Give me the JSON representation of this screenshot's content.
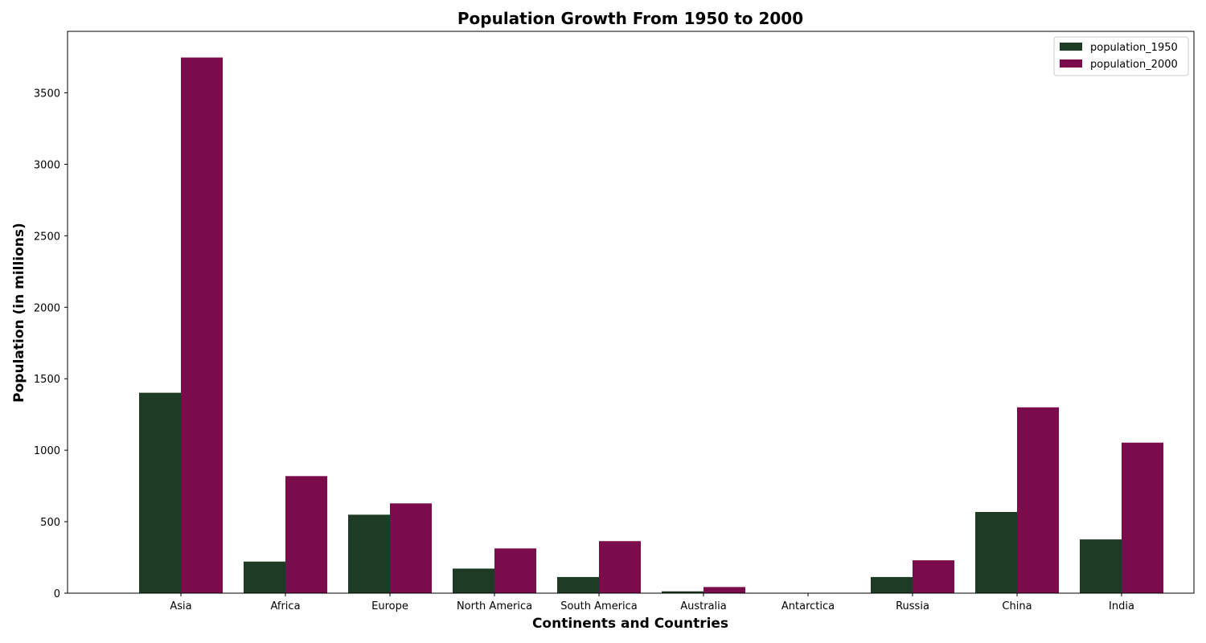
{
  "chart_data": {
    "type": "bar",
    "title": "Population Growth From 1950 to 2000",
    "xlabel": "Continents and Countries",
    "ylabel": "Population (in millions)",
    "categories": [
      "Asia",
      "Africa",
      "Europe",
      "North America",
      "South America",
      "Australia",
      "Antarctica",
      "Russia",
      "China",
      "India"
    ],
    "series": [
      {
        "name": "population_1950",
        "color": "#1e3b25",
        "values": [
          1402,
          221,
          549,
          172,
          113,
          13,
          0,
          113,
          568,
          376
        ]
      },
      {
        "name": "population_2000",
        "color": "#7b0c4c",
        "values": [
          3747,
          819,
          628,
          313,
          364,
          43,
          0,
          230,
          1300,
          1053
        ]
      }
    ],
    "ylim": [
      0,
      3930
    ],
    "yticks": [
      0,
      500,
      1000,
      1500,
      2000,
      2500,
      3000,
      3500
    ],
    "grid": false,
    "legend_position": "top-right"
  }
}
